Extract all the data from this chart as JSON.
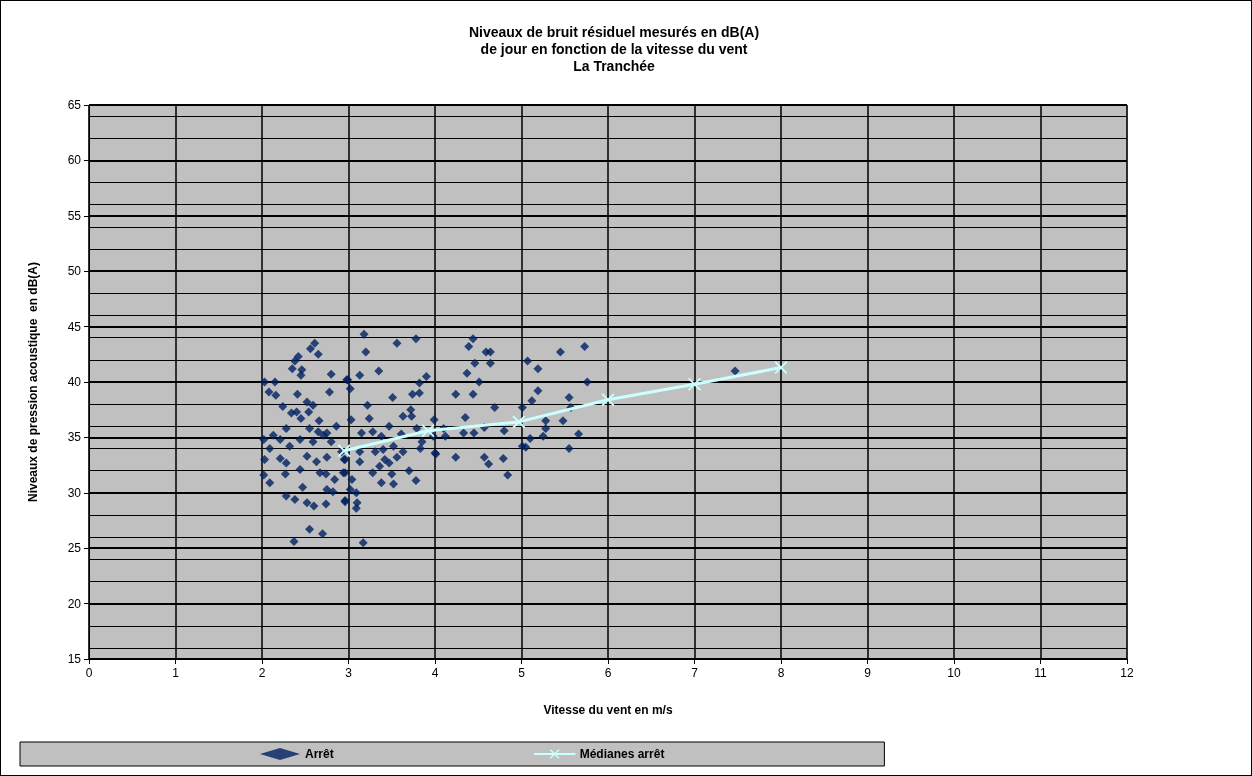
{
  "chart_data": {
    "type": "scatter",
    "title": "Niveaux de bruit résiduel mesurés en dB(A)\nde jour en fonction de la vitesse du vent\nLa Tranchée",
    "xlabel": "Vitesse du vent en m/s",
    "ylabel": "Niveaux de pression acoustique  en dB(A)",
    "xlim": [
      0,
      12
    ],
    "ylim": [
      15,
      65
    ],
    "xticks": [
      0,
      1,
      2,
      3,
      4,
      5,
      6,
      7,
      8,
      9,
      10,
      11,
      12
    ],
    "yticks": [
      15,
      20,
      25,
      30,
      35,
      40,
      45,
      50,
      55,
      60,
      65
    ],
    "grid": true,
    "legend": "bottom",
    "series": [
      {
        "name": "Arrêt",
        "marker": "diamond",
        "color": "#002060",
        "x": [
          2.61,
          2.56,
          2.65,
          2.42,
          2.38,
          2.35,
          2.46,
          2.45,
          2.8,
          2.98,
          2.03,
          2.15,
          2.08,
          2.16,
          2.41,
          2.78,
          2.52,
          2.59,
          2.24,
          2.34,
          2.4,
          2.54,
          2.45,
          2.66,
          2.86,
          2.28,
          2.55,
          2.65,
          2.71,
          2.13,
          2.02,
          2.21,
          2.44,
          2.59,
          2.75,
          2.8,
          2.32,
          2.09,
          2.92,
          2.52,
          2.21,
          2.03,
          2.28,
          2.63,
          2.75,
          2.96,
          2.44,
          2.27,
          2.67,
          2.74,
          2.02,
          2.09,
          2.84,
          2.96,
          2.47,
          2.75,
          2.82,
          2.28,
          2.38,
          2.52,
          2.6,
          2.74,
          2.96,
          2.55,
          2.7,
          2.37,
          3.18,
          3.56,
          3.78,
          3.2,
          3.35,
          3.13,
          2.99,
          3.02,
          3.82,
          3.9,
          3.74,
          3.82,
          3.51,
          3.22,
          3.72,
          3.63,
          3.73,
          3.24,
          3.03,
          3.47,
          3.99,
          3.15,
          3.28,
          3.38,
          3.61,
          3.79,
          4.1,
          4.12,
          3.98,
          3.13,
          3.31,
          3.4,
          3.52,
          3.63,
          3.85,
          3.83,
          2.95,
          3.13,
          3.42,
          3.47,
          3.56,
          4.01,
          4.0,
          3.36,
          3.28,
          3.5,
          3.7,
          2.94,
          3.04,
          3.38,
          3.52,
          3.78,
          3.02,
          3.09,
          2.96,
          3.1,
          3.09,
          3.17,
          4.44,
          4.39,
          4.59,
          4.64,
          4.46,
          4.64,
          4.37,
          4.51,
          4.24,
          4.44,
          4.69,
          4.35,
          4.33,
          4.45,
          4.57,
          4.8,
          4.24,
          4.57,
          4.62,
          4.79,
          4.84,
          5.07,
          5.45,
          5.73,
          5.19,
          5.76,
          5.19,
          5.12,
          5.01,
          5.55,
          5.57,
          5.28,
          5.48,
          5.28,
          5.1,
          5.25,
          5.01,
          5.05,
          5.66,
          5.55,
          7.47
        ],
        "values": [
          43.5,
          43.0,
          42.5,
          42.3,
          41.9,
          41.2,
          41.1,
          40.6,
          40.7,
          40.2,
          40.0,
          40.0,
          39.1,
          38.8,
          38.9,
          39.1,
          38.2,
          37.9,
          37.8,
          37.2,
          37.3,
          37.3,
          36.7,
          36.5,
          36.0,
          35.8,
          35.8,
          35.5,
          35.2,
          35.2,
          34.8,
          34.8,
          34.8,
          34.6,
          35.4,
          34.6,
          34.2,
          34.0,
          33.7,
          33.3,
          33.1,
          33.0,
          32.7,
          32.8,
          33.2,
          33.0,
          32.1,
          31.7,
          31.8,
          31.7,
          31.6,
          30.9,
          31.2,
          31.8,
          30.5,
          30.3,
          30.1,
          29.7,
          29.4,
          29.1,
          28.8,
          29.0,
          29.3,
          26.7,
          26.3,
          25.6,
          44.3,
          43.5,
          43.9,
          42.7,
          41.0,
          40.6,
          40.2,
          39.4,
          39.9,
          40.5,
          38.9,
          39.0,
          38.6,
          37.9,
          37.5,
          36.9,
          36.9,
          36.7,
          36.6,
          36.0,
          36.6,
          35.4,
          35.5,
          35.1,
          35.3,
          35.8,
          35.8,
          35.1,
          35.1,
          33.7,
          33.7,
          33.9,
          34.2,
          33.7,
          34.6,
          34.0,
          33.0,
          32.8,
          33.0,
          32.7,
          33.2,
          33.5,
          33.6,
          32.4,
          31.8,
          31.7,
          32.0,
          31.8,
          31.2,
          30.9,
          30.8,
          31.1,
          30.3,
          30.0,
          29.2,
          29.1,
          28.6,
          25.5,
          43.9,
          43.2,
          42.7,
          42.7,
          41.7,
          41.7,
          40.8,
          40.0,
          38.9,
          38.9,
          37.7,
          36.8,
          35.4,
          35.4,
          35.9,
          35.6,
          33.2,
          33.2,
          32.6,
          33.1,
          31.6,
          41.9,
          42.7,
          43.2,
          41.2,
          40.0,
          39.2,
          38.3,
          37.7,
          38.6,
          37.7,
          36.5,
          36.5,
          35.8,
          34.9,
          35.1,
          34.2,
          34.1,
          35.3,
          34.0,
          41.0
        ]
      },
      {
        "name": "Médianes arrêt",
        "type": "line",
        "marker": "cross",
        "color": "#ccffff",
        "x": [
          2.95,
          3.92,
          4.97,
          6.0,
          7.0,
          8.0
        ],
        "values": [
          33.8,
          35.6,
          36.4,
          38.4,
          39.8,
          41.3
        ]
      }
    ]
  }
}
